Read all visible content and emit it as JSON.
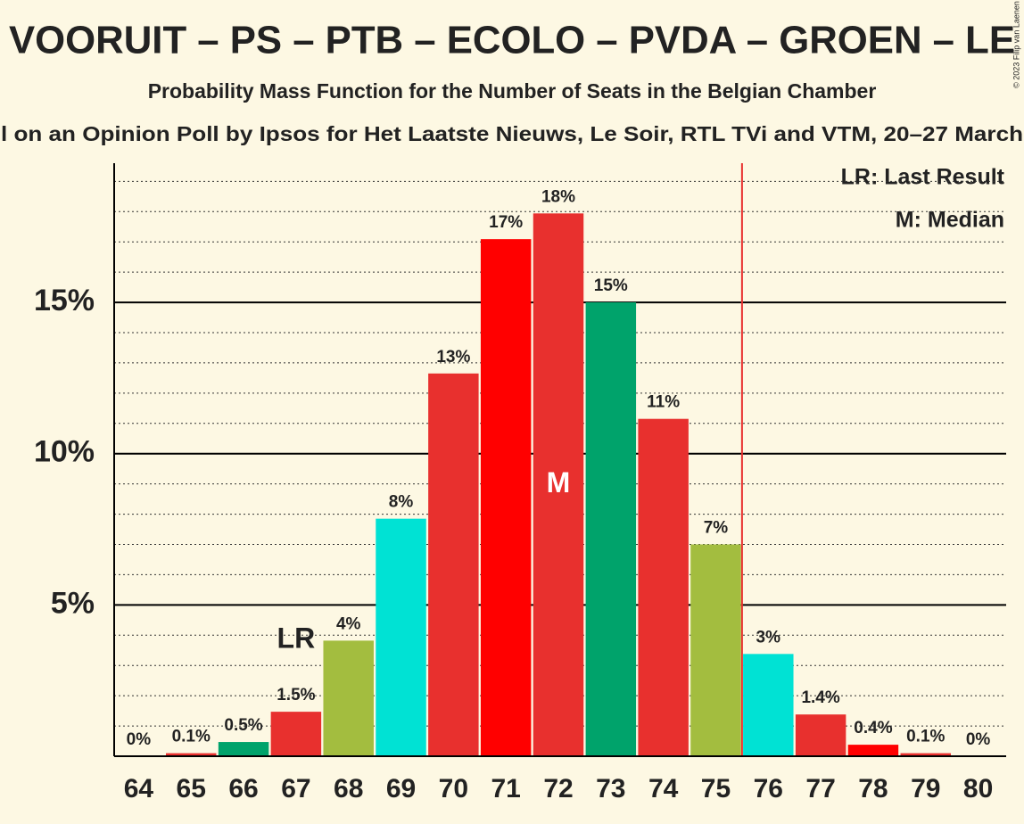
{
  "chart_data": {
    "type": "bar",
    "title": "VOORUIT – PS – PTB – ECOLO – PVDA – GROEN – LE",
    "subtitle": "Probability Mass Function for the Number of Seats in the Belgian Chamber",
    "source": "l on an Opinion Poll by Ipsos for Het Laatste Nieuws, Le Soir, RTL TVi and VTM, 20–27 March",
    "copyright": "© 2023 Filip van Laenen",
    "categories": [
      "64",
      "65",
      "66",
      "67",
      "68",
      "69",
      "70",
      "71",
      "72",
      "73",
      "74",
      "75",
      "76",
      "77",
      "78",
      "79",
      "80"
    ],
    "values": [
      0,
      0.1,
      0.47,
      1.47,
      3.82,
      7.85,
      12.65,
      17.09,
      17.94,
      15.0,
      11.15,
      7.0,
      3.38,
      1.38,
      0.38,
      0.1,
      0
    ],
    "value_labels": [
      "0%",
      "0.1%",
      "0.5%",
      "1.5%",
      "4%",
      "8%",
      "13%",
      "17%",
      "18%",
      "15%",
      "11%",
      "7%",
      "3%",
      "1.4%",
      "0.4%",
      "0.1%",
      "0%"
    ],
    "colors": [
      "#00e2d4",
      "#e8302e",
      "#00a36b",
      "#e8302e",
      "#a3bd3f",
      "#00e2d4",
      "#e8302e",
      "#ff0000",
      "#e8302e",
      "#00a36b",
      "#e8302e",
      "#a3bd3f",
      "#00e2d4",
      "#e8302e",
      "#ff0000",
      "#e8302e",
      "#e8302e"
    ],
    "ylim": [
      0,
      19.6
    ],
    "yticks": [
      {
        "value": 5,
        "label": "5%"
      },
      {
        "value": 10,
        "label": "10%"
      },
      {
        "value": 15,
        "label": "15%"
      }
    ],
    "minor_yticks": [
      1,
      2,
      3,
      4,
      6,
      7,
      8,
      9,
      11,
      12,
      13,
      14,
      16,
      17,
      18,
      19
    ],
    "grid": true,
    "last_result_index": 3,
    "last_result_label": "LR",
    "median_index": 8,
    "median_label": "M",
    "majority_index": 12,
    "majority_color": "#e8302e",
    "legend": [
      "LR: Last Result",
      "M: Median"
    ]
  }
}
